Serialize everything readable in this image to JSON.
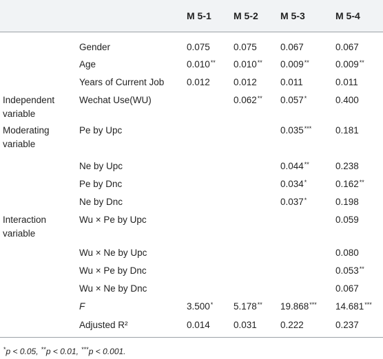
{
  "columns": [
    "M 5-1",
    "M 5-2",
    "M 5-3",
    "M 5-4"
  ],
  "rows": [
    {
      "category": "",
      "variable": "Gender",
      "values": [
        {
          "v": "0.075",
          "s": ""
        },
        {
          "v": "0.075",
          "s": ""
        },
        {
          "v": "0.067",
          "s": ""
        },
        {
          "v": "0.067",
          "s": ""
        }
      ]
    },
    {
      "category": "",
      "variable": "Age",
      "values": [
        {
          "v": "0.010",
          "s": "**"
        },
        {
          "v": "0.010",
          "s": "**"
        },
        {
          "v": "0.009",
          "s": "**"
        },
        {
          "v": "0.009",
          "s": "**"
        }
      ]
    },
    {
      "category": "",
      "variable": "Years of Current Job",
      "values": [
        {
          "v": "0.012",
          "s": ""
        },
        {
          "v": "0.012",
          "s": ""
        },
        {
          "v": "0.011",
          "s": ""
        },
        {
          "v": "0.011",
          "s": ""
        }
      ]
    },
    {
      "category": "Independent variable",
      "variable": "Wechat Use(WU)",
      "values": [
        {
          "v": "",
          "s": ""
        },
        {
          "v": "0.062",
          "s": "**"
        },
        {
          "v": "0.057",
          "s": "*"
        },
        {
          "v": "0.400",
          "s": ""
        }
      ]
    },
    {
      "category": "Moderating variable",
      "variable": "Pe by Upc",
      "values": [
        {
          "v": "",
          "s": ""
        },
        {
          "v": "",
          "s": ""
        },
        {
          "v": "0.035",
          "s": "***"
        },
        {
          "v": "0.181",
          "s": ""
        }
      ]
    },
    {
      "category": "",
      "variable": "Ne by Upc",
      "values": [
        {
          "v": "",
          "s": ""
        },
        {
          "v": "",
          "s": ""
        },
        {
          "v": "0.044",
          "s": "**"
        },
        {
          "v": "0.238",
          "s": ""
        }
      ]
    },
    {
      "category": "",
      "variable": "Pe by Dnc",
      "values": [
        {
          "v": "",
          "s": ""
        },
        {
          "v": "",
          "s": ""
        },
        {
          "v": "0.034",
          "s": "*"
        },
        {
          "v": "0.162",
          "s": "**"
        }
      ]
    },
    {
      "category": "",
      "variable": "Ne by Dnc",
      "values": [
        {
          "v": "",
          "s": ""
        },
        {
          "v": "",
          "s": ""
        },
        {
          "v": "0.037",
          "s": "*"
        },
        {
          "v": "0.198",
          "s": ""
        }
      ]
    },
    {
      "category": "Interaction variable",
      "variable": "Wu × Pe by Upc",
      "values": [
        {
          "v": "",
          "s": ""
        },
        {
          "v": "",
          "s": ""
        },
        {
          "v": "",
          "s": ""
        },
        {
          "v": "0.059",
          "s": ""
        }
      ]
    },
    {
      "category": "",
      "variable": "Wu × Ne by Upc",
      "values": [
        {
          "v": "",
          "s": ""
        },
        {
          "v": "",
          "s": ""
        },
        {
          "v": "",
          "s": ""
        },
        {
          "v": "0.080",
          "s": ""
        }
      ]
    },
    {
      "category": "",
      "variable": "Wu × Pe by Dnc",
      "values": [
        {
          "v": "",
          "s": ""
        },
        {
          "v": "",
          "s": ""
        },
        {
          "v": "",
          "s": ""
        },
        {
          "v": "0.053",
          "s": "**"
        }
      ]
    },
    {
      "category": "",
      "variable": "Wu × Ne by Dnc",
      "values": [
        {
          "v": "",
          "s": ""
        },
        {
          "v": "",
          "s": ""
        },
        {
          "v": "",
          "s": ""
        },
        {
          "v": "0.067",
          "s": ""
        }
      ]
    },
    {
      "category": "",
      "variable": "F",
      "italic": true,
      "values": [
        {
          "v": "3.500",
          "s": "*"
        },
        {
          "v": "5.178",
          "s": "**"
        },
        {
          "v": "19.868",
          "s": "***"
        },
        {
          "v": "14.681",
          "s": "***"
        }
      ]
    },
    {
      "category": "",
      "variable": "Adjusted R²",
      "values": [
        {
          "v": "0.014",
          "s": ""
        },
        {
          "v": "0.031",
          "s": ""
        },
        {
          "v": "0.222",
          "s": ""
        },
        {
          "v": "0.237",
          "s": ""
        }
      ]
    }
  ],
  "footnote": {
    "p1": "p < 0.05, ",
    "s1": "*",
    "p2": "p < 0.01, ",
    "s2": "**",
    "p3": "p < 0.001.",
    "s3": "***"
  }
}
